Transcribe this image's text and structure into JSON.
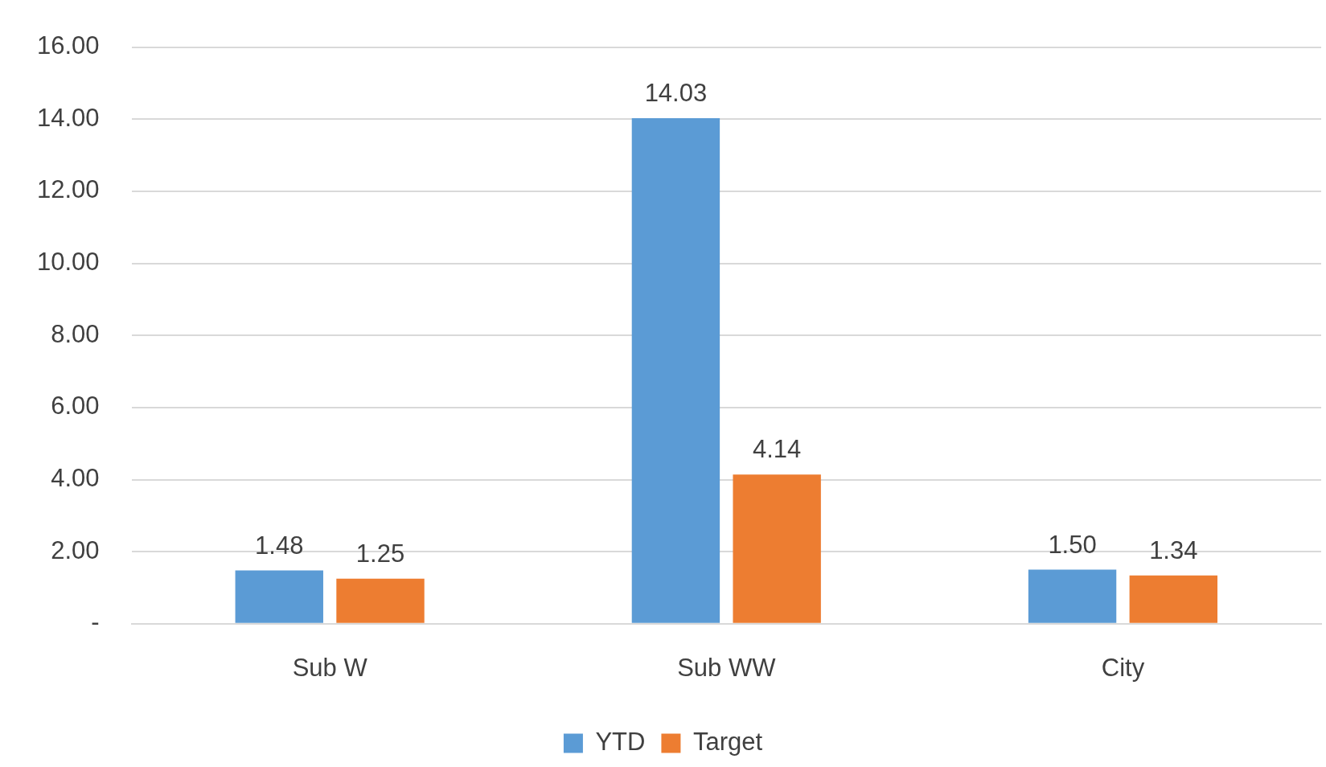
{
  "chart_data": {
    "type": "bar",
    "categories": [
      "Sub W",
      "Sub WW",
      "City"
    ],
    "series": [
      {
        "name": "YTD",
        "color": "#5b9bd5",
        "values": [
          1.48,
          14.03,
          1.5
        ],
        "value_labels": [
          "1.48",
          "14.03",
          "1.50"
        ]
      },
      {
        "name": "Target",
        "color": "#ed7d31",
        "values": [
          1.25,
          4.14,
          1.34
        ],
        "value_labels": [
          "1.25",
          "4.14",
          "1.34"
        ]
      }
    ],
    "ylim": [
      0,
      16
    ],
    "yticks": [
      {
        "value": 0,
        "label": "-"
      },
      {
        "value": 2,
        "label": "2.00"
      },
      {
        "value": 4,
        "label": "4.00"
      },
      {
        "value": 6,
        "label": "6.00"
      },
      {
        "value": 8,
        "label": "8.00"
      },
      {
        "value": 10,
        "label": "10.00"
      },
      {
        "value": 12,
        "label": "12.00"
      },
      {
        "value": 14,
        "label": "14.00"
      },
      {
        "value": 16,
        "label": "16.00"
      }
    ],
    "grid": "y",
    "legend": "bottom"
  }
}
